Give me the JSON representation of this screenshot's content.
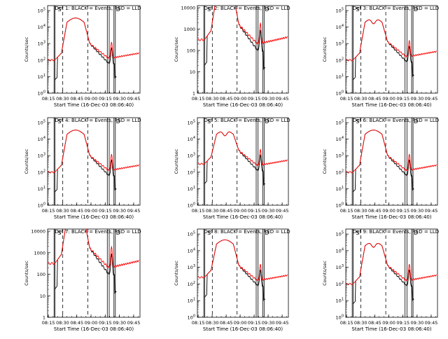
{
  "figure": {
    "xlabel": "Start Time (16-Dec-03 08:06:40)",
    "ylabel": "Counts/sec",
    "legend_text": "BLACK = Events, RED = LLD",
    "xticks": [
      "08:15",
      "08:30",
      "08:45",
      "09:00",
      "09:15",
      "09:30",
      "09:45"
    ],
    "colors": {
      "events": "#000000",
      "lld": "#ff0000"
    }
  },
  "chart_data": [
    {
      "type": "line",
      "title": "Det 1",
      "yticks": [
        "10^0",
        "10^1",
        "10^2",
        "10^3",
        "10^4",
        "10^5"
      ],
      "ylog": true,
      "ylim_exp": [
        0,
        5.3
      ],
      "markers": [
        "S",
        "D"
      ],
      "series": [
        {
          "name": "Events",
          "shape": "A"
        },
        {
          "name": "LLD",
          "shape": "A"
        }
      ]
    },
    {
      "type": "line",
      "title": "Det 2",
      "yticks": [
        "1",
        "10",
        "100",
        "1000",
        "10000"
      ],
      "ylog": true,
      "ylim_exp": [
        0,
        4.1
      ],
      "markers": [
        "S",
        "D"
      ],
      "series": [
        {
          "name": "Events",
          "shape": "B"
        },
        {
          "name": "LLD",
          "shape": "B"
        }
      ]
    },
    {
      "type": "line",
      "title": "Det 3",
      "yticks": [
        "10^0",
        "10^1",
        "10^2",
        "10^3",
        "10^4",
        "10^5"
      ],
      "ylog": true,
      "ylim_exp": [
        0,
        5.3
      ],
      "markers": [
        "S",
        "D"
      ],
      "series": [
        {
          "name": "Events",
          "shape": "C"
        },
        {
          "name": "LLD",
          "shape": "C"
        }
      ]
    },
    {
      "type": "line",
      "title": "Det 4",
      "yticks": [
        "10^0",
        "10^1",
        "10^2",
        "10^3",
        "10^4",
        "10^5"
      ],
      "ylog": true,
      "ylim_exp": [
        0,
        5.3
      ],
      "markers": [
        "S",
        "D"
      ],
      "series": [
        {
          "name": "Events",
          "shape": "A"
        },
        {
          "name": "LLD",
          "shape": "A"
        }
      ]
    },
    {
      "type": "line",
      "title": "Det 5",
      "yticks": [
        "10^0",
        "10^1",
        "10^2",
        "10^3",
        "10^4",
        "10^5"
      ],
      "ylog": true,
      "ylim_exp": [
        0,
        5.3
      ],
      "markers": [
        "S",
        "D"
      ],
      "series": [
        {
          "name": "Events",
          "shape": "E"
        },
        {
          "name": "LLD",
          "shape": "E"
        }
      ]
    },
    {
      "type": "line",
      "title": "Det 6",
      "yticks": [
        "10^0",
        "10^1",
        "10^2",
        "10^3",
        "10^4",
        "10^5"
      ],
      "ylog": true,
      "ylim_exp": [
        0,
        5.3
      ],
      "markers": [
        "S",
        "D"
      ],
      "series": [
        {
          "name": "Events",
          "shape": "A"
        },
        {
          "name": "LLD",
          "shape": "A"
        }
      ]
    },
    {
      "type": "line",
      "title": "Det 7",
      "yticks": [
        "1",
        "10",
        "100",
        "1000",
        "10000"
      ],
      "ylog": true,
      "ylim_exp": [
        0,
        4.1
      ],
      "markers": [
        "S",
        "D"
      ],
      "series": [
        {
          "name": "Events",
          "shape": "B"
        },
        {
          "name": "LLD",
          "shape": "B"
        }
      ]
    },
    {
      "type": "line",
      "title": "Det 8",
      "yticks": [
        "10^0",
        "10^1",
        "10^2",
        "10^3",
        "10^4",
        "10^5"
      ],
      "ylog": true,
      "ylim_exp": [
        0,
        5.3
      ],
      "markers": [
        "S",
        "D"
      ],
      "series": [
        {
          "name": "Events",
          "shape": "F"
        },
        {
          "name": "LLD",
          "shape": "F"
        }
      ]
    },
    {
      "type": "line",
      "title": "Det 9",
      "yticks": [
        "10^0",
        "10^1",
        "10^2",
        "10^3",
        "10^4",
        "10^5"
      ],
      "ylog": true,
      "ylim_exp": [
        0,
        5.3
      ],
      "markers": [
        "S",
        "D"
      ],
      "series": [
        {
          "name": "Events",
          "shape": "C"
        },
        {
          "name": "LLD",
          "shape": "C"
        }
      ]
    }
  ]
}
